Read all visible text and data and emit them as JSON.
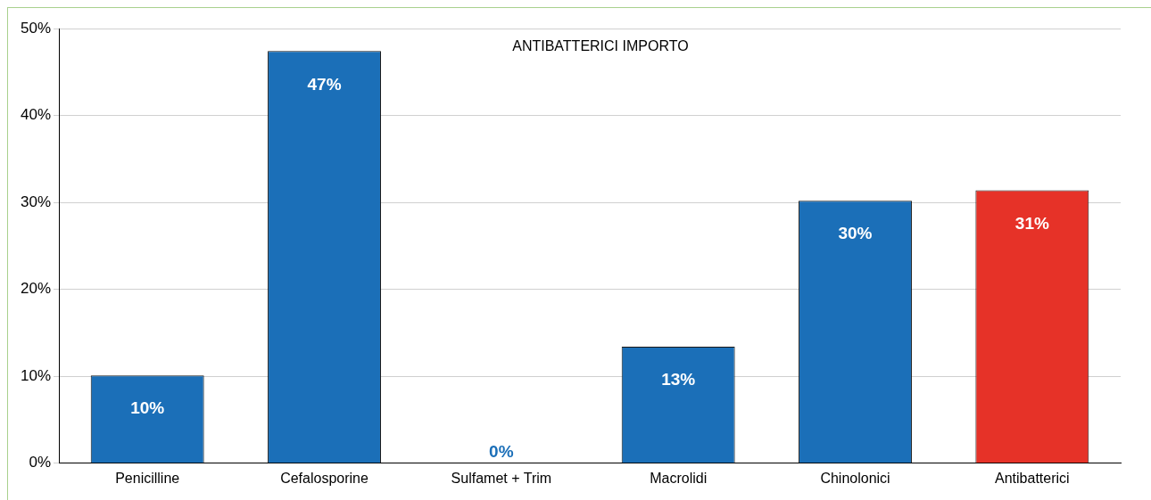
{
  "chart_data": {
    "type": "bar",
    "title": "ANTIBATTERICI IMPORTO",
    "categories": [
      "Penicilline",
      "Cefalosporine",
      "Sulfamet + Trim",
      "Macrolidi",
      "Chinolonici",
      "Antibatterici"
    ],
    "values": [
      10.1,
      47.4,
      0,
      13.4,
      30.2,
      31.4
    ],
    "value_labels": [
      "10%",
      "47%",
      "0%",
      "13%",
      "30%",
      "31%"
    ],
    "colors": [
      "#1b6fb8",
      "#1b6fb8",
      "#1b6fb8",
      "#1b6fb8",
      "#1b6fb8",
      "#e63228"
    ],
    "ylim": [
      0,
      50
    ],
    "yticks": [
      {
        "value": 0,
        "label": "0%"
      },
      {
        "value": 10,
        "label": "10%"
      },
      {
        "value": 20,
        "label": "20%"
      },
      {
        "value": 30,
        "label": "30%"
      },
      {
        "value": 40,
        "label": "40%"
      },
      {
        "value": 50,
        "label": "50%"
      }
    ],
    "grid": "y",
    "legend": false
  }
}
